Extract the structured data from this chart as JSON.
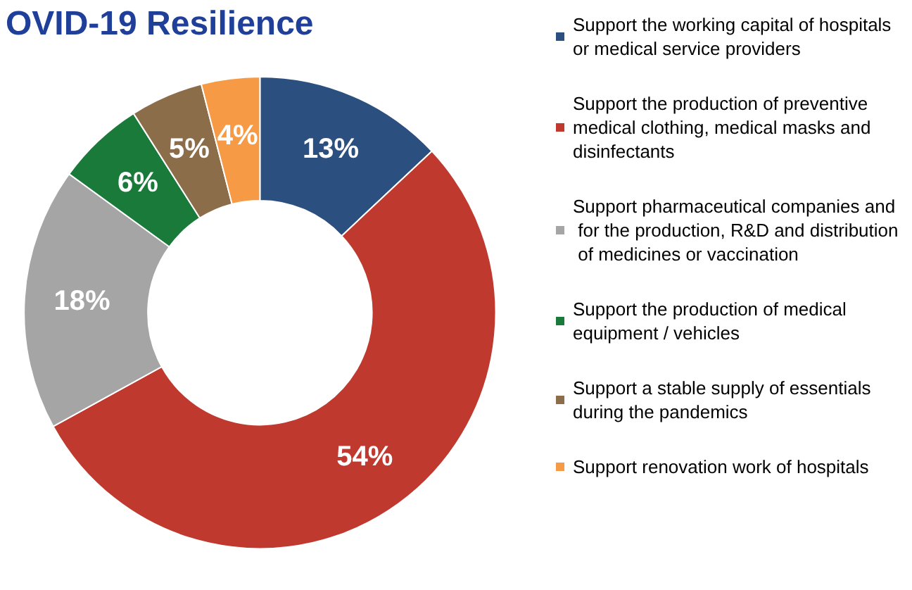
{
  "chart_data": {
    "type": "donut",
    "title": "OVID-19 Resilience",
    "categories": [
      "Support the working capital of hospitals or medical service providers",
      "Support the production of preventive medical clothing, medical masks and disinfectants",
      "Support pharmaceutical companies and for the production, R&D and distribution of medicines or vaccination",
      "Support the production of medical equipment / vehicles",
      "Support a stable supply of essentials during the pandemics",
      "Support renovation work of hospitals"
    ],
    "values": [
      13,
      54,
      18,
      6,
      5,
      4
    ],
    "colors": [
      "#2b4f7e",
      "#c0392f",
      "#a5a5a5",
      "#197a3a",
      "#8b6d4a",
      "#f79a46"
    ],
    "value_labels": [
      "13%",
      "54%",
      "18%",
      "6%",
      "5%",
      "4%"
    ],
    "legend": "right"
  }
}
